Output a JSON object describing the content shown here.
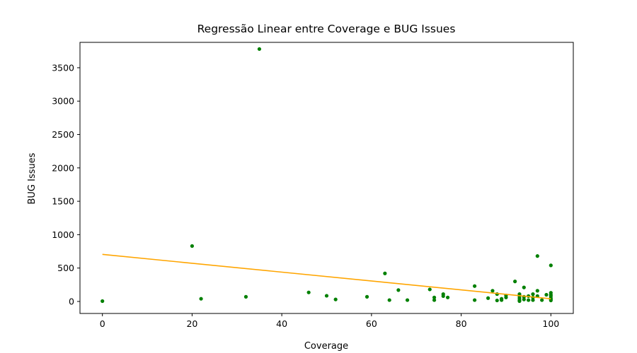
{
  "chart_data": {
    "type": "scatter",
    "title": "Regressão Linear entre Coverage e BUG Issues",
    "xlabel": "Coverage",
    "ylabel": "BUG Issues",
    "xlim": [
      -5,
      105
    ],
    "ylim": [
      -180,
      3880
    ],
    "xticks": [
      0,
      20,
      40,
      60,
      80,
      100
    ],
    "yticks": [
      0,
      500,
      1000,
      1500,
      2000,
      2500,
      3000,
      3500
    ],
    "grid": false,
    "colors": {
      "points": "#008000",
      "regression": "#ffa500",
      "axes": "#000000"
    },
    "series": [
      {
        "name": "data",
        "kind": "scatter",
        "points": [
          [
            0,
            5
          ],
          [
            20,
            830
          ],
          [
            22,
            40
          ],
          [
            32,
            70
          ],
          [
            35,
            3780
          ],
          [
            46,
            135
          ],
          [
            50,
            85
          ],
          [
            52,
            30
          ],
          [
            59,
            70
          ],
          [
            63,
            420
          ],
          [
            64,
            20
          ],
          [
            66,
            170
          ],
          [
            68,
            20
          ],
          [
            73,
            180
          ],
          [
            74,
            60
          ],
          [
            74,
            20
          ],
          [
            76,
            110
          ],
          [
            76,
            80
          ],
          [
            77,
            60
          ],
          [
            83,
            230
          ],
          [
            83,
            20
          ],
          [
            86,
            50
          ],
          [
            87,
            160
          ],
          [
            88,
            110
          ],
          [
            88,
            15
          ],
          [
            89,
            40
          ],
          [
            89,
            20
          ],
          [
            90,
            90
          ],
          [
            90,
            60
          ],
          [
            92,
            300
          ],
          [
            93,
            110
          ],
          [
            93,
            80
          ],
          [
            93,
            50
          ],
          [
            93,
            20
          ],
          [
            93,
            5
          ],
          [
            94,
            210
          ],
          [
            94,
            70
          ],
          [
            94,
            30
          ],
          [
            95,
            80
          ],
          [
            95,
            20
          ],
          [
            96,
            110
          ],
          [
            96,
            60
          ],
          [
            96,
            20
          ],
          [
            97,
            680
          ],
          [
            97,
            160
          ],
          [
            97,
            80
          ],
          [
            98,
            20
          ],
          [
            99,
            100
          ],
          [
            100,
            540
          ],
          [
            100,
            130
          ],
          [
            100,
            100
          ],
          [
            100,
            80
          ],
          [
            100,
            50
          ],
          [
            100,
            30
          ],
          [
            100,
            15
          ]
        ]
      },
      {
        "name": "regression",
        "kind": "line",
        "points": [
          [
            0,
            705
          ],
          [
            100,
            40
          ]
        ]
      }
    ]
  }
}
